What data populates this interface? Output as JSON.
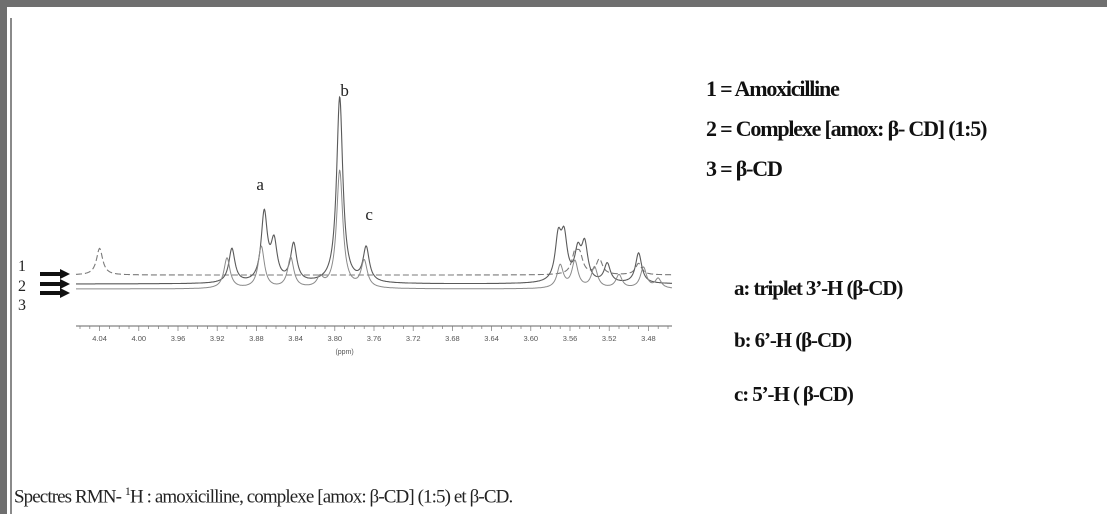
{
  "legend": {
    "items": [
      "1 = Amoxicilline",
      "2 = Complexe [amox: β- CD] (1:5)",
      "3 = β-CD"
    ]
  },
  "assignments": {
    "items": [
      "a: triplet 3’-H (β-CD)",
      "b: 6’-H (β-CD)",
      "c: 5’-H ( β-CD)"
    ]
  },
  "caption": {
    "prefix": "Spectres RMN- ",
    "superscript": "1",
    "suffix": "H : amoxicilline, complexe [amox: β-CD] (1:5) et β-CD."
  },
  "chart_data": {
    "type": "line",
    "title": "",
    "xlabel": "(ppm)",
    "ylabel": "",
    "x_reversed": true,
    "xlim": [
      4.06,
      3.46
    ],
    "x_ticks": [
      "4.04",
      "4.00",
      "3.96",
      "3.92",
      "3.88",
      "3.84",
      "3.80",
      "3.76",
      "3.72",
      "3.68",
      "3.64",
      "3.60",
      "3.56",
      "3.52",
      "3.48"
    ],
    "trace_labels": [
      "1",
      "2",
      "3"
    ],
    "peak_labels": [
      {
        "label": "a",
        "ppm": 3.87
      },
      {
        "label": "b",
        "ppm": 3.79
      },
      {
        "label": "c",
        "ppm": 3.765
      }
    ],
    "series": [
      {
        "name": "1",
        "peaks": [
          {
            "ppm": 4.04,
            "height": 0.14
          },
          {
            "ppm": 3.555,
            "height": 0.1
          },
          {
            "ppm": 3.55,
            "height": 0.09
          },
          {
            "ppm": 3.53,
            "height": 0.08
          },
          {
            "ppm": 3.49,
            "height": 0.06
          }
        ]
      },
      {
        "name": "2",
        "peaks": [
          {
            "ppm": 3.905,
            "height": 0.18
          },
          {
            "ppm": 3.872,
            "height": 0.36
          },
          {
            "ppm": 3.862,
            "height": 0.2
          },
          {
            "ppm": 3.842,
            "height": 0.2
          },
          {
            "ppm": 3.795,
            "height": 0.98
          },
          {
            "ppm": 3.768,
            "height": 0.18
          },
          {
            "ppm": 3.572,
            "height": 0.22
          },
          {
            "ppm": 3.566,
            "height": 0.22
          },
          {
            "ppm": 3.552,
            "height": 0.15
          },
          {
            "ppm": 3.545,
            "height": 0.19
          },
          {
            "ppm": 3.522,
            "height": 0.1
          },
          {
            "ppm": 3.49,
            "height": 0.16
          }
        ]
      },
      {
        "name": "3",
        "peaks": [
          {
            "ppm": 3.91,
            "height": 0.16
          },
          {
            "ppm": 3.875,
            "height": 0.22
          },
          {
            "ppm": 3.845,
            "height": 0.16
          },
          {
            "ppm": 3.815,
            "height": 0.05
          },
          {
            "ppm": 3.795,
            "height": 0.62
          },
          {
            "ppm": 3.77,
            "height": 0.14
          },
          {
            "ppm": 3.57,
            "height": 0.12
          },
          {
            "ppm": 3.555,
            "height": 0.14
          },
          {
            "ppm": 3.535,
            "height": 0.11
          },
          {
            "ppm": 3.51,
            "height": 0.07
          },
          {
            "ppm": 3.485,
            "height": 0.11
          },
          {
            "ppm": 3.47,
            "height": 0.05
          }
        ]
      }
    ]
  }
}
